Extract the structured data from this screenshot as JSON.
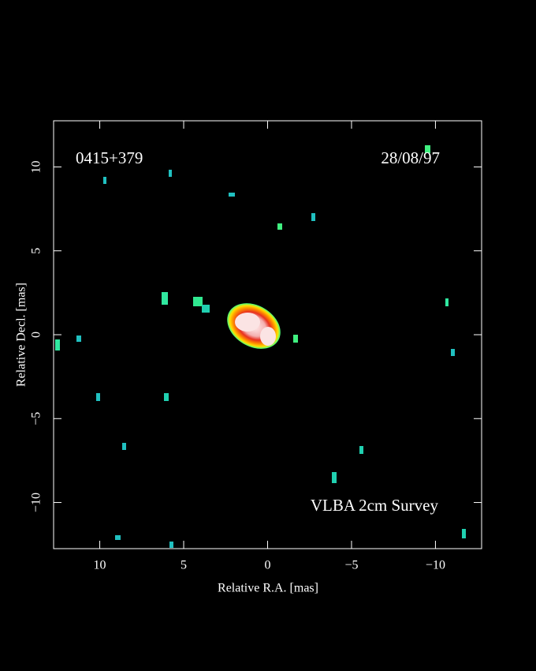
{
  "chart_data": {
    "type": "image",
    "source": "0415+379",
    "date": "28/08/97",
    "survey": "VLBA 2cm Survey",
    "x_label": "Relative R.A. [mas]",
    "y_label": "Relative Decl. [mas]",
    "xlim": [
      12.75,
      -12.75
    ],
    "ylim": [
      -12.75,
      12.75
    ],
    "xticks": [
      10,
      5,
      0,
      {
        "value": -5,
        "label": "−5"
      },
      {
        "value": -10,
        "label": "−10"
      }
    ],
    "yticks": [
      {
        "value": -10,
        "label": "−10"
      },
      {
        "value": -5,
        "label": "−5"
      },
      0,
      5,
      10
    ]
  }
}
